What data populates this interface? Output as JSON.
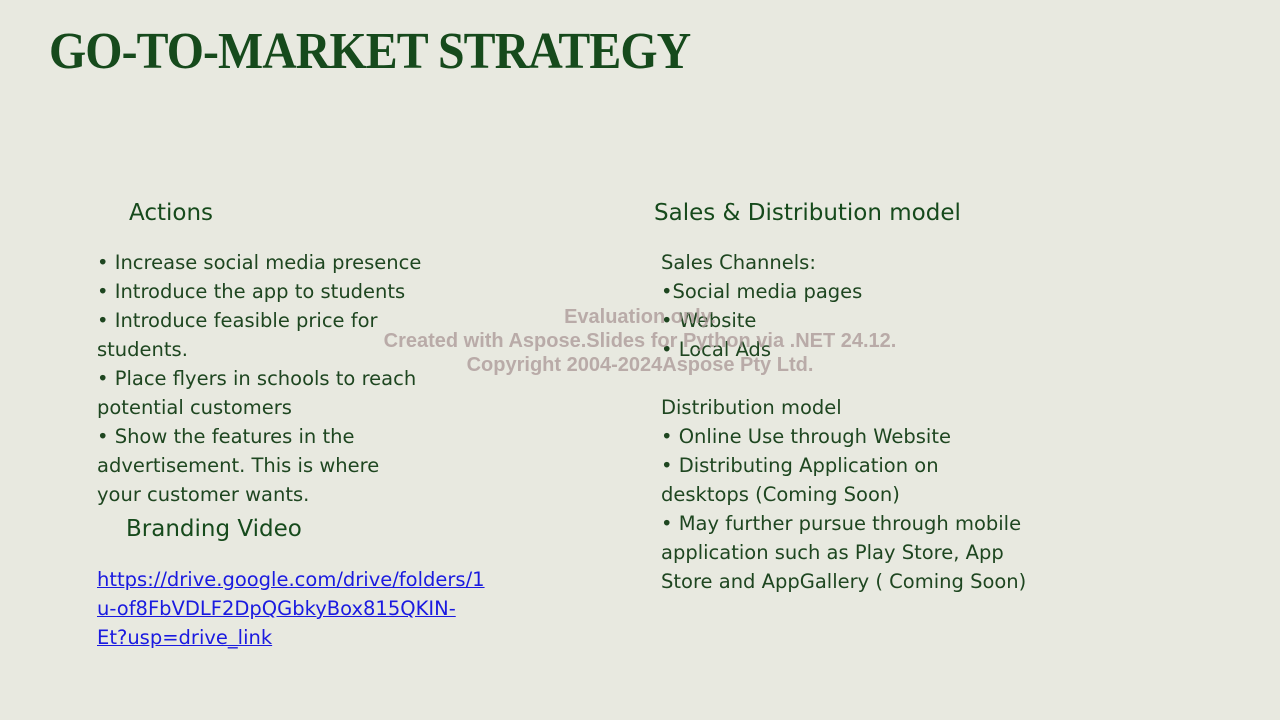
{
  "slide": {
    "title": "GO-TO-MARKET STRATEGY"
  },
  "actions": {
    "heading": "Actions",
    "lines": [
      "• Increase social media presence",
      "• Introduce the app to students",
      "• Introduce feasible price for",
      "students.",
      "• Place flyers in schools to reach",
      "potential customers",
      "• Show the features in the",
      "advertisement. This is where",
      "your customer wants."
    ]
  },
  "branding": {
    "heading": "Branding Video",
    "link_lines": [
      "https://drive.google.com/drive/folders/1",
      "u-of8FbVDLF2DpQGbkyBox815QKIN-",
      "Et?usp=drive_link"
    ]
  },
  "sales": {
    "heading": "Sales & Distribution model",
    "lines": [
      "Sales Channels:",
      "•Social media pages",
      "• Website",
      "• Local Ads",
      "",
      "Distribution model",
      "• Online Use through Website",
      "• Distributing Application on",
      "desktops (Coming Soon)",
      "• May further pursue through mobile",
      "application such as Play Store, App",
      "Store and AppGallery ( Coming Soon)"
    ]
  },
  "watermark": {
    "lines": [
      "Evaluation only.",
      "Created with Aspose.Slides for Python via .NET 24.12.",
      "Copyright 2004-2024Aspose Pty Ltd."
    ]
  },
  "colors": {
    "background": "#e8e9e0",
    "title": "#164a1c",
    "text": "#1e4620",
    "link": "#1a1ae0"
  }
}
